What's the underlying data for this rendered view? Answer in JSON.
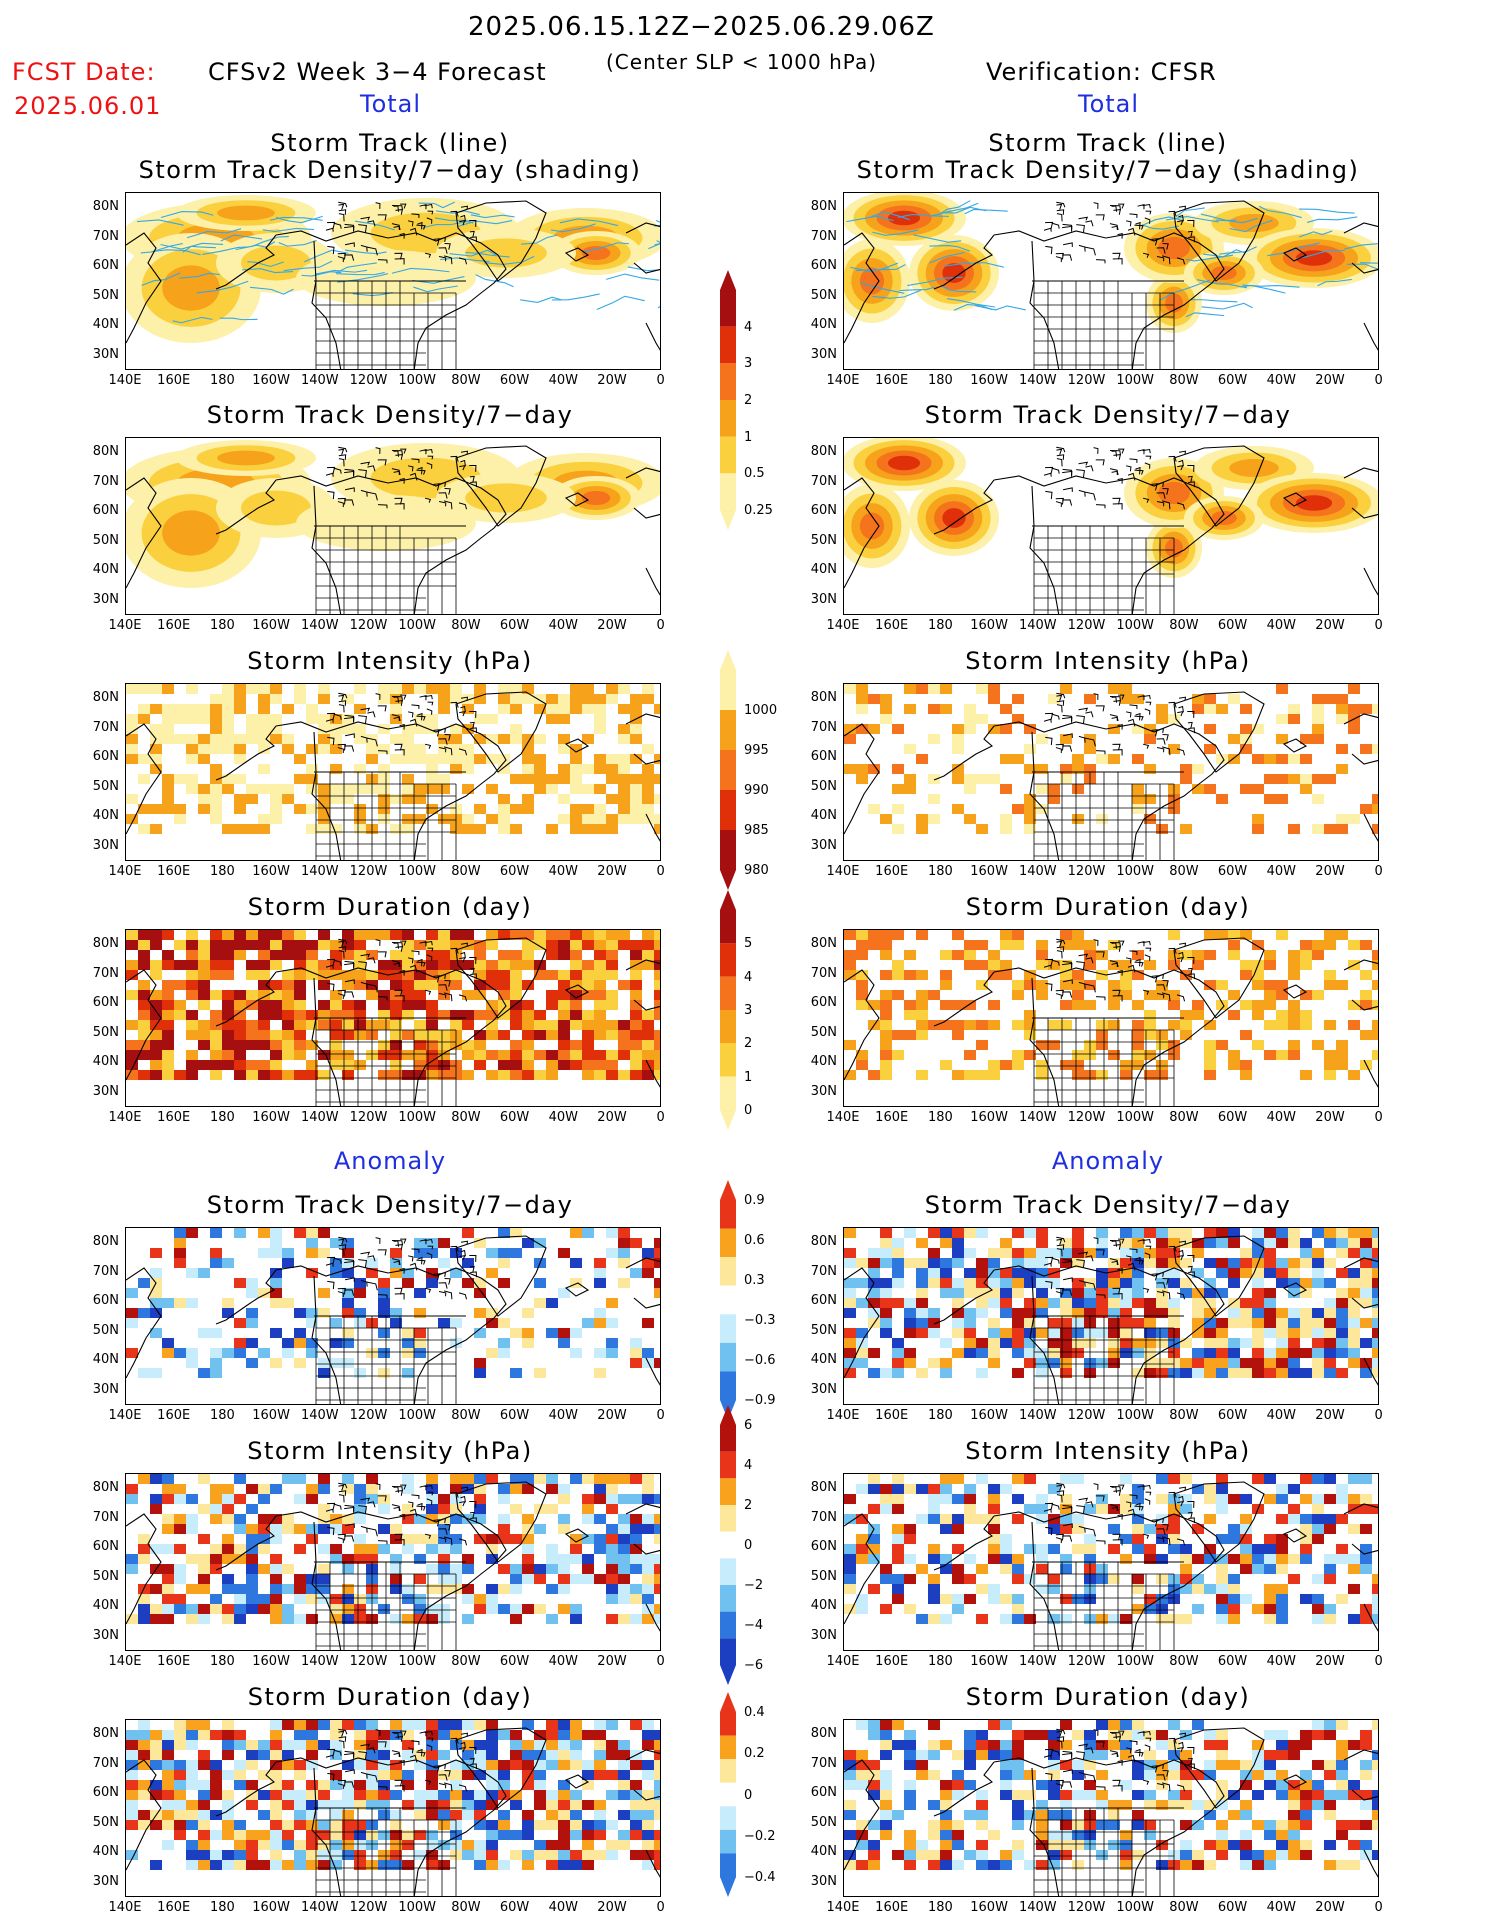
{
  "header": {
    "period": "2025.06.15.12Z−2025.06.29.06Z",
    "fcst_label": "FCST Date:",
    "fcst_date": "2025.06.01",
    "model_title": "CFSv2 Week 3−4 Forecast",
    "criterion": "(Center SLP < 1000 hPa)",
    "verification": "Verification: CFSR",
    "left_total": "Total",
    "right_total": "Total",
    "left_anomaly": "Anomaly",
    "right_anomaly": "Anomaly"
  },
  "panel_titles": {
    "track_line": "Storm Track (line)",
    "track_density_shading": "Storm Track Density/7−day (shading)",
    "track_density": "Storm Track Density/7−day",
    "intensity": "Storm Intensity (hPa)",
    "duration": "Storm Duration (day)"
  },
  "axes": {
    "lat_labels": [
      "80N",
      "70N",
      "60N",
      "50N",
      "40N",
      "30N"
    ],
    "lon_labels": [
      "140E",
      "160E",
      "180",
      "160W",
      "140W",
      "120W",
      "100W",
      "80W",
      "60W",
      "40W",
      "20W",
      "0"
    ]
  },
  "colorbars": {
    "density": {
      "labels": [
        "4",
        "3",
        "2",
        "1",
        "0.5",
        "0.25"
      ],
      "colors": [
        "#a50f0f",
        "#e0300a",
        "#f4731c",
        "#f7a21b",
        "#fbd03f",
        "#fdf0a8"
      ]
    },
    "intensity": {
      "labels": [
        "1000",
        "995",
        "990",
        "985",
        "980"
      ],
      "colors": [
        "#fdf0a8",
        "#f7a21b",
        "#f4731c",
        "#e0300a",
        "#a50f0f"
      ]
    },
    "duration": {
      "labels": [
        "5",
        "4",
        "3",
        "2",
        "1",
        "0"
      ],
      "colors": [
        "#a50f0f",
        "#e0300a",
        "#f4731c",
        "#f7a21b",
        "#fbd03f",
        "#fdf0a8"
      ]
    },
    "anom_density": {
      "labels": [
        "0.9",
        "0.6",
        "0.3",
        "−0.3",
        "−0.6",
        "−0.9"
      ]
    },
    "anom_intensity": {
      "labels": [
        "6",
        "4",
        "2",
        "0",
        "−2",
        "−4",
        "−6"
      ]
    },
    "anom_duration": {
      "labels": [
        "0.4",
        "0.2",
        "0",
        "−0.2",
        "−0.4"
      ]
    },
    "anom_colors": [
      "#b2110c",
      "#e8351a",
      "#f9a21e",
      "#fde79b",
      "#ffffff",
      "#c7ecfb",
      "#70c1ef",
      "#2e77df",
      "#1c3fc2"
    ]
  },
  "panels": {
    "left": [
      "track_line",
      "density",
      "intensity",
      "duration",
      "anom_density",
      "anom_intensity",
      "anom_duration"
    ],
    "right": [
      "track_line",
      "density",
      "intensity",
      "duration",
      "anom_density",
      "anom_intensity",
      "anom_duration"
    ]
  }
}
